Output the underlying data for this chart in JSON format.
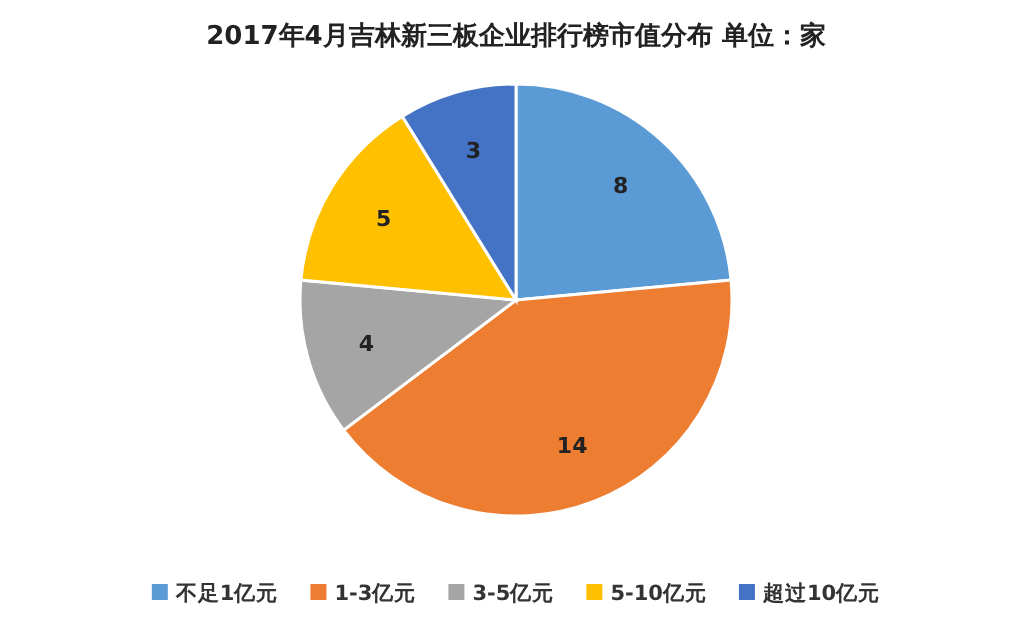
{
  "chart_data": {
    "type": "pie",
    "title": "2017年4月吉林新三板企业排行榜市值分布  单位：家",
    "categories": [
      "不足1亿元",
      "1-3亿元",
      "3-5亿元",
      "5-10亿元",
      "超过10亿元"
    ],
    "values": [
      8,
      14,
      4,
      5,
      3
    ],
    "colors": [
      "#5b9bd5",
      "#ed7d31",
      "#a5a5a5",
      "#ffc000",
      "#4472c4"
    ],
    "data_labels": true,
    "legend": "bottom"
  }
}
